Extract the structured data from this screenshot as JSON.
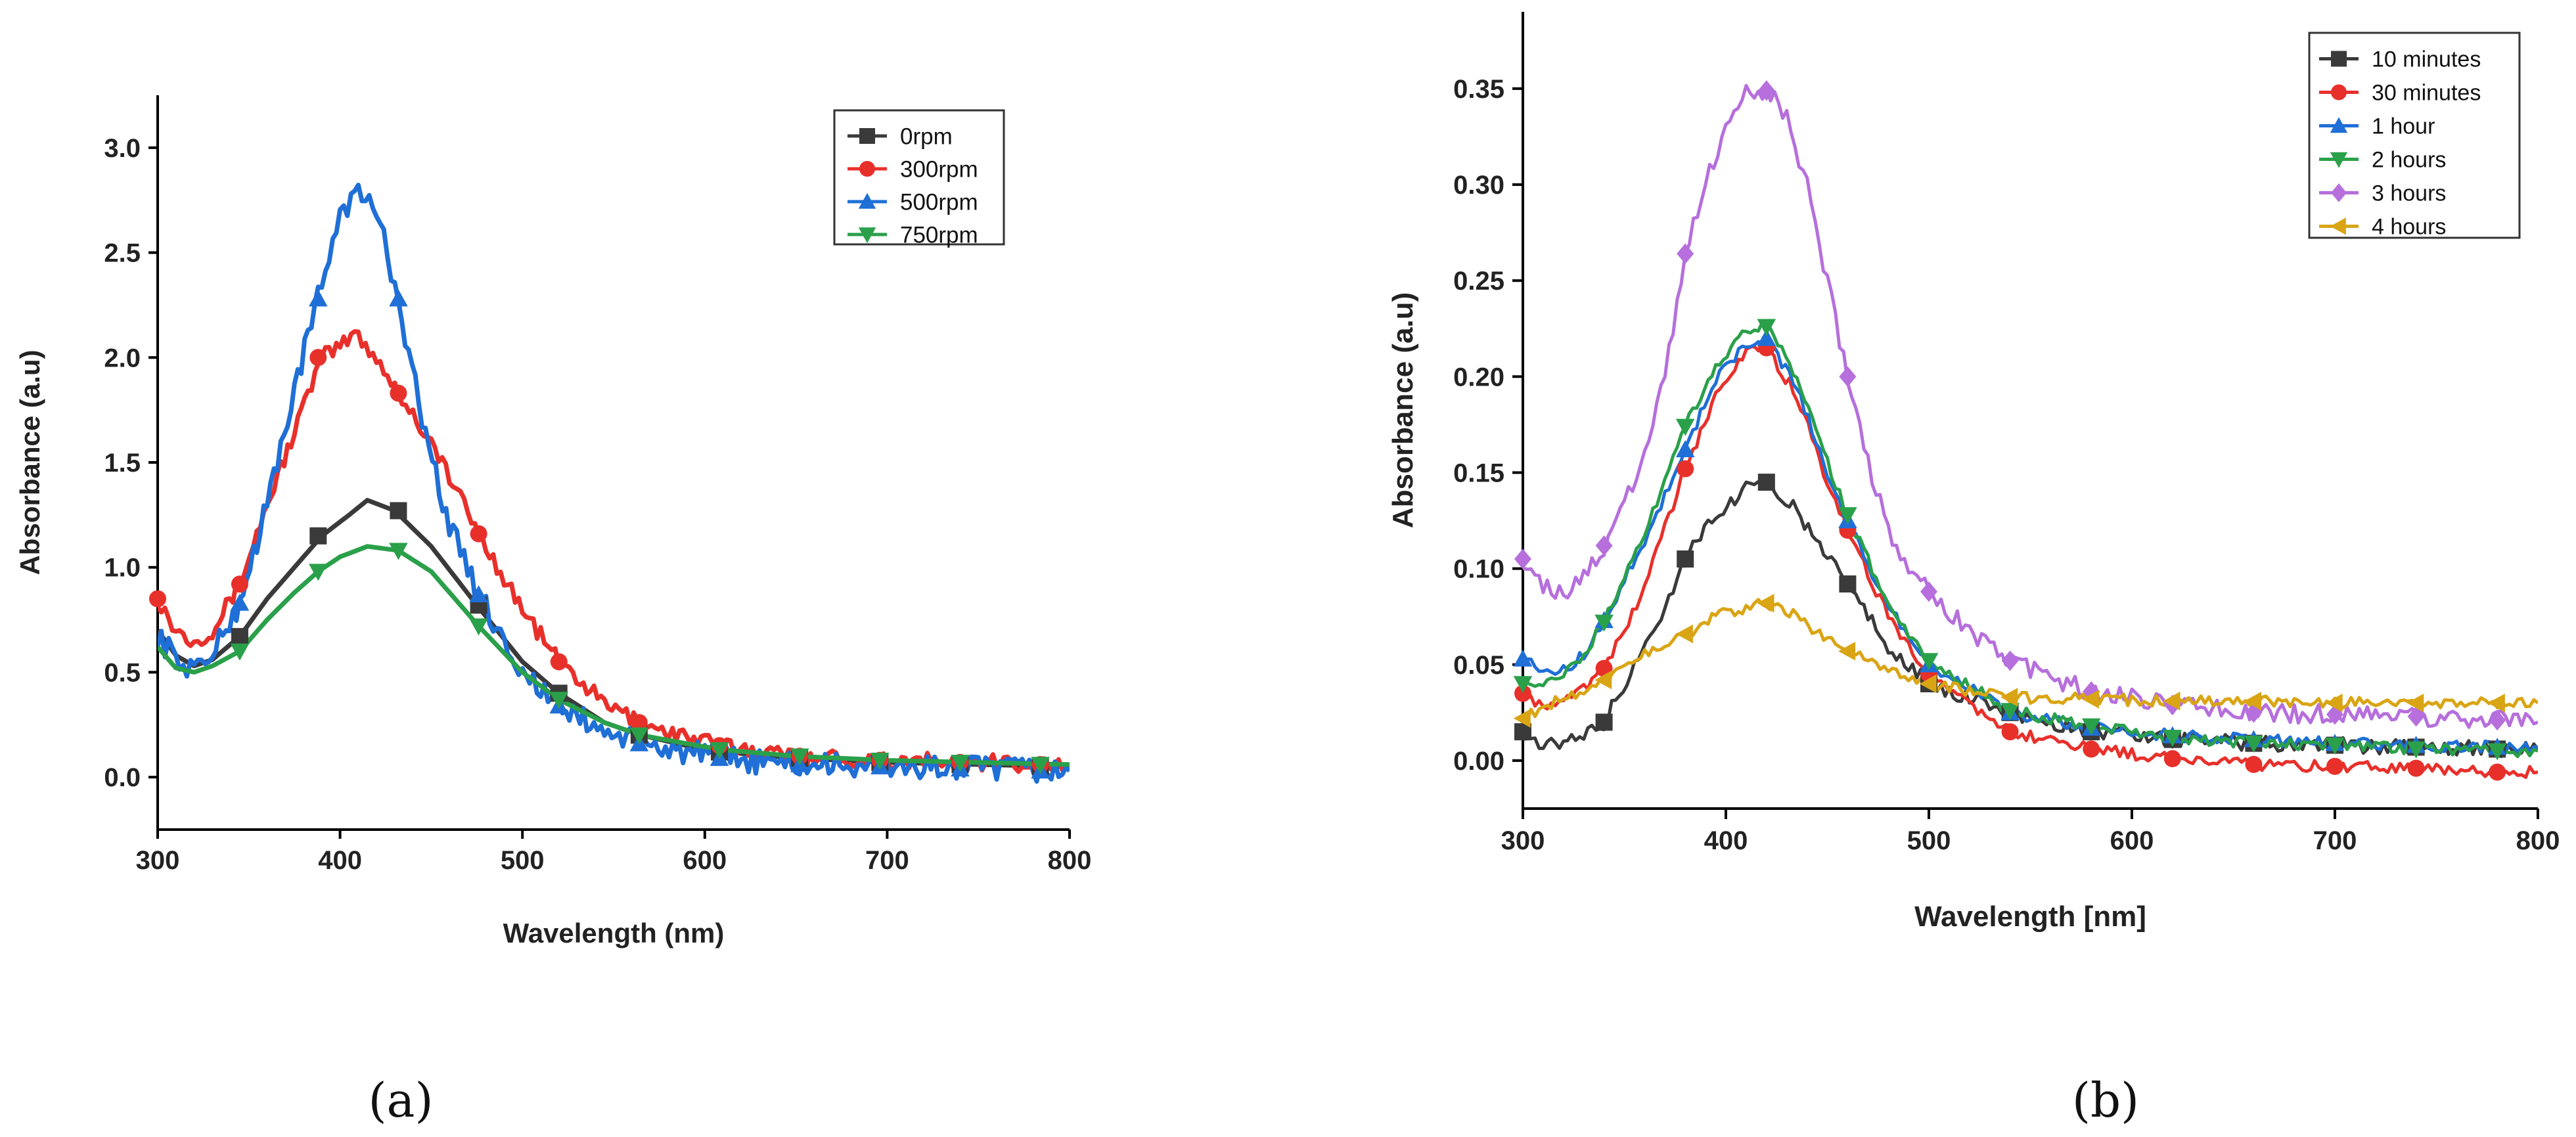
{
  "chart_data": [
    {
      "type": "line",
      "panel_label": "(a)",
      "xlabel": "Wavelength (nm)",
      "ylabel": "Absorbance (a.u)",
      "xlim": [
        300,
        800
      ],
      "ylim": [
        -0.25,
        3.25
      ],
      "xticks": [
        300,
        400,
        500,
        600,
        700,
        800
      ],
      "yticks": [
        0.0,
        0.5,
        1.0,
        1.5,
        2.0,
        2.5,
        3.0
      ],
      "ytick_labels": [
        "0.0",
        "0.5",
        "1.0",
        "1.5",
        "2.0",
        "2.5",
        "3.0"
      ],
      "legend_position": "top-right",
      "series": [
        {
          "name": "0rpm",
          "color": "#3a3a3a",
          "marker": "square",
          "x": [
            300,
            310,
            320,
            330,
            345,
            360,
            375,
            390,
            405,
            415,
            430,
            450,
            475,
            500,
            520,
            545,
            565,
            590,
            610,
            650,
            700,
            750,
            800
          ],
          "y": [
            0.7,
            0.58,
            0.53,
            0.56,
            0.67,
            0.85,
            1.0,
            1.15,
            1.25,
            1.32,
            1.27,
            1.1,
            0.82,
            0.55,
            0.4,
            0.26,
            0.2,
            0.15,
            0.12,
            0.09,
            0.07,
            0.06,
            0.05
          ],
          "markers_x": [
            345,
            388,
            432,
            476,
            520,
            564,
            608,
            652,
            696,
            740,
            784
          ],
          "markers_y": [
            0.67,
            1.15,
            1.27,
            0.82,
            0.4,
            0.2,
            0.12,
            0.09,
            0.07,
            0.06,
            0.05
          ]
        },
        {
          "name": "300rpm",
          "color": "#e8302b",
          "marker": "circle",
          "x": [
            300,
            310,
            320,
            330,
            345,
            360,
            375,
            390,
            400,
            408,
            420,
            432,
            450,
            476,
            500,
            520,
            545,
            565,
            590,
            610,
            650,
            700,
            750,
            800
          ],
          "y": [
            0.85,
            0.7,
            0.65,
            0.7,
            0.92,
            1.3,
            1.65,
            2.0,
            2.05,
            2.12,
            2.0,
            1.83,
            1.6,
            1.16,
            0.8,
            0.55,
            0.35,
            0.26,
            0.19,
            0.15,
            0.1,
            0.08,
            0.07,
            0.06
          ],
          "markers_x": [
            300,
            345,
            388,
            432,
            476,
            520,
            564,
            608,
            652,
            696,
            740,
            784
          ],
          "markers_y": [
            0.85,
            0.92,
            2.0,
            1.83,
            1.16,
            0.55,
            0.26,
            0.15,
            0.1,
            0.08,
            0.07,
            0.06
          ],
          "noise": 0.04
        },
        {
          "name": "500rpm",
          "color": "#1f6fd6",
          "marker": "triangle-up",
          "x": [
            300,
            310,
            320,
            330,
            345,
            360,
            375,
            388,
            400,
            410,
            420,
            432,
            445,
            460,
            476,
            500,
            520,
            545,
            565,
            590,
            610,
            650,
            700,
            750,
            800
          ],
          "y": [
            0.68,
            0.56,
            0.52,
            0.58,
            0.83,
            1.3,
            1.85,
            2.28,
            2.7,
            2.78,
            2.7,
            2.28,
            1.7,
            1.2,
            0.87,
            0.5,
            0.34,
            0.22,
            0.16,
            0.12,
            0.09,
            0.06,
            0.05,
            0.04,
            0.03
          ],
          "markers_x": [
            345,
            388,
            432,
            476,
            520,
            564,
            608,
            652,
            696,
            740,
            784
          ],
          "markers_y": [
            0.83,
            2.28,
            2.28,
            0.87,
            0.34,
            0.16,
            0.09,
            0.06,
            0.05,
            0.04,
            0.03
          ],
          "noise": 0.06
        },
        {
          "name": "750rpm",
          "color": "#2aa04a",
          "marker": "triangle-down",
          "x": [
            300,
            310,
            320,
            330,
            345,
            360,
            375,
            388,
            400,
            415,
            432,
            450,
            476,
            500,
            520,
            545,
            565,
            590,
            610,
            650,
            700,
            750,
            800
          ],
          "y": [
            0.62,
            0.52,
            0.5,
            0.53,
            0.6,
            0.75,
            0.88,
            0.98,
            1.05,
            1.1,
            1.08,
            0.98,
            0.72,
            0.5,
            0.37,
            0.26,
            0.2,
            0.16,
            0.13,
            0.1,
            0.08,
            0.07,
            0.06
          ],
          "markers_x": [
            345,
            388,
            432,
            476,
            520,
            564,
            608,
            652,
            696,
            740,
            784
          ],
          "markers_y": [
            0.6,
            0.98,
            1.08,
            0.72,
            0.37,
            0.2,
            0.13,
            0.1,
            0.08,
            0.07,
            0.06
          ]
        }
      ]
    },
    {
      "type": "line",
      "panel_label": "(b)",
      "xlabel": "Wavelength [nm]",
      "ylabel": "Absorbance (a.u)",
      "xlim": [
        300,
        800
      ],
      "ylim": [
        -0.025,
        0.39
      ],
      "xticks": [
        300,
        400,
        500,
        600,
        700,
        800
      ],
      "yticks": [
        0.0,
        0.05,
        0.1,
        0.15,
        0.2,
        0.25,
        0.3,
        0.35
      ],
      "ytick_labels": [
        "0.00",
        "0.05",
        "0.10",
        "0.15",
        "0.20",
        "0.25",
        "0.30",
        "0.35"
      ],
      "legend_position": "top-right",
      "series": [
        {
          "name": "10 minutes",
          "color": "#3a3a3a",
          "marker": "square",
          "x": [
            300,
            310,
            320,
            330,
            340,
            355,
            370,
            380,
            395,
            410,
            420,
            435,
            450,
            460,
            480,
            500,
            540,
            580,
            620,
            660,
            700,
            740,
            780,
            800
          ],
          "y": [
            0.015,
            0.008,
            0.01,
            0.012,
            0.02,
            0.05,
            0.08,
            0.105,
            0.128,
            0.142,
            0.145,
            0.13,
            0.105,
            0.092,
            0.06,
            0.04,
            0.025,
            0.015,
            0.011,
            0.009,
            0.008,
            0.007,
            0.006,
            0.006
          ],
          "markers_x": [
            300,
            340,
            380,
            420,
            460,
            500,
            540,
            580,
            620,
            660,
            700,
            740,
            780
          ],
          "markers_y": [
            0.015,
            0.02,
            0.105,
            0.145,
            0.092,
            0.04,
            0.025,
            0.015,
            0.011,
            0.009,
            0.008,
            0.007,
            0.006
          ],
          "noise": 0.004
        },
        {
          "name": "30 minutes",
          "color": "#e8302b",
          "marker": "circle",
          "x": [
            300,
            310,
            320,
            330,
            340,
            360,
            380,
            395,
            410,
            420,
            435,
            450,
            460,
            480,
            500,
            540,
            580,
            620,
            660,
            700,
            740,
            780,
            800
          ],
          "y": [
            0.035,
            0.028,
            0.03,
            0.038,
            0.048,
            0.09,
            0.152,
            0.19,
            0.212,
            0.215,
            0.19,
            0.145,
            0.12,
            0.075,
            0.045,
            0.015,
            0.006,
            0.001,
            -0.002,
            -0.003,
            -0.004,
            -0.006,
            -0.006
          ],
          "markers_x": [
            300,
            340,
            380,
            420,
            460,
            500,
            540,
            580,
            620,
            660,
            700,
            740,
            780
          ],
          "markers_y": [
            0.035,
            0.048,
            0.152,
            0.215,
            0.12,
            0.045,
            0.015,
            0.006,
            0.001,
            -0.002,
            -0.003,
            -0.004,
            -0.006
          ],
          "noise": 0.003
        },
        {
          "name": "1 hour",
          "color": "#1f6fd6",
          "marker": "triangle-up",
          "x": [
            300,
            310,
            320,
            330,
            340,
            360,
            380,
            395,
            410,
            420,
            435,
            450,
            460,
            480,
            500,
            540,
            580,
            620,
            660,
            700,
            740,
            780,
            800
          ],
          "y": [
            0.053,
            0.045,
            0.047,
            0.055,
            0.073,
            0.115,
            0.162,
            0.198,
            0.218,
            0.22,
            0.195,
            0.15,
            0.125,
            0.08,
            0.05,
            0.025,
            0.017,
            0.013,
            0.011,
            0.009,
            0.008,
            0.007,
            0.007
          ],
          "markers_x": [
            300,
            340,
            380,
            420,
            460,
            500,
            540,
            580,
            620,
            660,
            700,
            740,
            780
          ],
          "markers_y": [
            0.053,
            0.073,
            0.162,
            0.22,
            0.125,
            0.05,
            0.025,
            0.017,
            0.013,
            0.011,
            0.009,
            0.008,
            0.007
          ],
          "noise": 0.003
        },
        {
          "name": "2 hours",
          "color": "#2aa04a",
          "marker": "triangle-down",
          "x": [
            300,
            310,
            320,
            330,
            340,
            360,
            380,
            395,
            410,
            420,
            435,
            450,
            460,
            480,
            500,
            540,
            580,
            620,
            660,
            700,
            740,
            780,
            800
          ],
          "y": [
            0.04,
            0.042,
            0.046,
            0.055,
            0.072,
            0.118,
            0.174,
            0.205,
            0.225,
            0.226,
            0.2,
            0.155,
            0.128,
            0.082,
            0.052,
            0.026,
            0.018,
            0.012,
            0.009,
            0.008,
            0.006,
            0.005,
            0.005
          ],
          "markers_x": [
            300,
            340,
            380,
            420,
            460,
            500,
            540,
            580,
            620,
            660,
            700,
            740,
            780
          ],
          "markers_y": [
            0.04,
            0.072,
            0.174,
            0.226,
            0.128,
            0.052,
            0.026,
            0.018,
            0.012,
            0.009,
            0.008,
            0.006,
            0.005
          ],
          "noise": 0.003
        },
        {
          "name": "3 hours",
          "color": "#b66fdc",
          "marker": "diamond",
          "x": [
            300,
            310,
            320,
            330,
            340,
            350,
            360,
            370,
            380,
            390,
            400,
            410,
            420,
            430,
            440,
            450,
            460,
            470,
            480,
            490,
            500,
            520,
            540,
            560,
            580,
            620,
            660,
            700,
            740,
            780,
            800
          ],
          "y": [
            0.105,
            0.09,
            0.088,
            0.095,
            0.112,
            0.135,
            0.16,
            0.2,
            0.264,
            0.3,
            0.33,
            0.348,
            0.349,
            0.335,
            0.3,
            0.25,
            0.2,
            0.155,
            0.12,
            0.1,
            0.088,
            0.068,
            0.052,
            0.043,
            0.036,
            0.029,
            0.025,
            0.024,
            0.023,
            0.021,
            0.02
          ],
          "markers_x": [
            300,
            340,
            380,
            420,
            460,
            500,
            540,
            580,
            620,
            660,
            700,
            740,
            780
          ],
          "markers_y": [
            0.105,
            0.112,
            0.264,
            0.349,
            0.2,
            0.088,
            0.052,
            0.036,
            0.029,
            0.025,
            0.024,
            0.023,
            0.021
          ],
          "noise": 0.005
        },
        {
          "name": "4 hours",
          "color": "#d9a514",
          "marker": "triangle-left",
          "x": [
            300,
            310,
            320,
            330,
            340,
            360,
            380,
            395,
            410,
            420,
            435,
            450,
            460,
            480,
            500,
            540,
            580,
            620,
            660,
            700,
            740,
            780,
            800
          ],
          "y": [
            0.022,
            0.028,
            0.032,
            0.036,
            0.042,
            0.055,
            0.066,
            0.075,
            0.08,
            0.082,
            0.075,
            0.063,
            0.057,
            0.046,
            0.04,
            0.033,
            0.032,
            0.031,
            0.031,
            0.03,
            0.03,
            0.03,
            0.03
          ],
          "markers_x": [
            300,
            340,
            380,
            420,
            460,
            500,
            540,
            580,
            620,
            660,
            700,
            740,
            780
          ],
          "markers_y": [
            0.022,
            0.042,
            0.066,
            0.082,
            0.057,
            0.04,
            0.033,
            0.032,
            0.031,
            0.031,
            0.03,
            0.03,
            0.03
          ],
          "noise": 0.003
        }
      ]
    }
  ]
}
